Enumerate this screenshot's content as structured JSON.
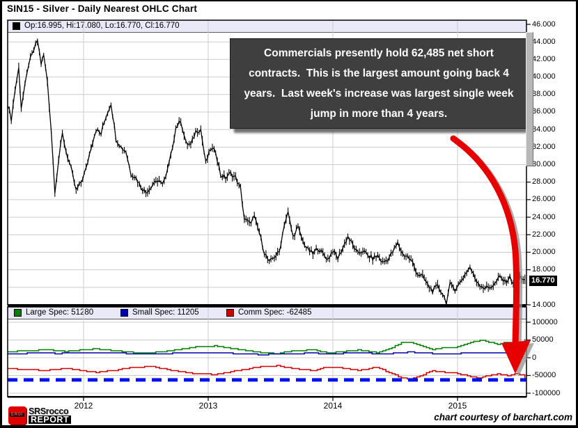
{
  "window": {
    "title": "SIN15 - Silver - Daily Nearest OHLC Chart"
  },
  "colors": {
    "grid": "#cccccc",
    "frame": "#000000",
    "strip_bg": "#e9e9f8",
    "price_series": "#000000",
    "large_spec": "#008000",
    "small_spec": "#0000aa",
    "comm_spec": "#d40000",
    "reference_dash": "#0010f0",
    "arrow": "#e60000",
    "arrow_shadow": "#909090",
    "last_price_bg": "#000000"
  },
  "main_panel": {
    "ohlc_legend": {
      "label": "Op:16.995, Hi:17.080, Lo:16.770, Cl:16.770",
      "swatch_color": "#000000"
    },
    "last_price": {
      "label": "16.770",
      "value": 16.77
    },
    "y_ticks": [
      {
        "label": "46.000",
        "value": 46
      },
      {
        "label": "44.000",
        "value": 44
      },
      {
        "label": "42.000",
        "value": 42
      },
      {
        "label": "40.000",
        "value": 40
      },
      {
        "label": "38.000",
        "value": 38
      },
      {
        "label": "36.000",
        "value": 36
      },
      {
        "label": "34.000",
        "value": 34
      },
      {
        "label": "32.000",
        "value": 32
      },
      {
        "label": "30.000",
        "value": 30
      },
      {
        "label": "28.000",
        "value": 28
      },
      {
        "label": "26.000",
        "value": 26
      },
      {
        "label": "24.000",
        "value": 24
      },
      {
        "label": "22.000",
        "value": 22
      },
      {
        "label": "20.000",
        "value": 20
      },
      {
        "label": "18.000",
        "value": 18
      },
      {
        "label": "14.000",
        "value": 14
      }
    ]
  },
  "annotation": {
    "text": "Commercials presently hold 62,485 net short contracts.  This is the largest amount going back 4 years.  Last week's increase was largest single week jump in more than 4 years."
  },
  "indicator_panel": {
    "legend": [
      {
        "label": "Large Spec: 51280",
        "color": "#008000"
      },
      {
        "label": "Small Spec: 11205",
        "color": "#0000aa"
      },
      {
        "label": "Comm Spec: -62485",
        "color": "#cc0000"
      }
    ],
    "y_ticks": [
      {
        "label": "100000",
        "value": 100000
      },
      {
        "label": "50000",
        "value": 50000
      },
      {
        "label": "0",
        "value": 0
      },
      {
        "label": "-50000",
        "value": -50000
      },
      {
        "label": "-100000",
        "value": -100000
      }
    ]
  },
  "x_axis": {
    "ticks": [
      {
        "label": "2012",
        "value": 2012
      },
      {
        "label": "2013",
        "value": 2013
      },
      {
        "label": "2014",
        "value": 2014
      },
      {
        "label": "2015",
        "value": 2015
      }
    ]
  },
  "footer": {
    "logo": {
      "icon_text": "EROI",
      "line1": "SRSrocco",
      "line2": "REPORT"
    },
    "courtesy": "chart courtesy of barchart.com"
  },
  "chart_data": [
    {
      "type": "line",
      "subtype": "ohlc-daily-rendered-as-line",
      "title": "SIN15 - Silver - Daily Nearest OHLC Chart",
      "x_unit": "year-decimal",
      "ylim": [
        14,
        46
      ],
      "y_tick_step": 2,
      "x_ticks": [
        2012,
        2013,
        2014,
        2015
      ],
      "grid": true,
      "last_bar": {
        "op": 16.995,
        "hi": 17.08,
        "lo": 16.77,
        "cl": 16.77
      },
      "points": [
        [
          2011.39,
          37.0
        ],
        [
          2011.42,
          35.2
        ],
        [
          2011.45,
          38.5
        ],
        [
          2011.48,
          41.0
        ],
        [
          2011.5,
          36.5
        ],
        [
          2011.53,
          39.0
        ],
        [
          2011.56,
          41.5
        ],
        [
          2011.6,
          43.0
        ],
        [
          2011.63,
          44.2
        ],
        [
          2011.66,
          41.5
        ],
        [
          2011.68,
          42.5
        ],
        [
          2011.71,
          39.5
        ],
        [
          2011.74,
          34.0
        ],
        [
          2011.77,
          27.0
        ],
        [
          2011.8,
          30.5
        ],
        [
          2011.83,
          33.5
        ],
        [
          2011.86,
          31.5
        ],
        [
          2011.9,
          29.5
        ],
        [
          2011.94,
          27.0
        ],
        [
          2011.98,
          28.0
        ],
        [
          2012.02,
          29.5
        ],
        [
          2012.06,
          32.0
        ],
        [
          2012.1,
          34.0
        ],
        [
          2012.14,
          33.5
        ],
        [
          2012.18,
          35.5
        ],
        [
          2012.22,
          37.0
        ],
        [
          2012.26,
          33.0
        ],
        [
          2012.3,
          32.0
        ],
        [
          2012.34,
          31.5
        ],
        [
          2012.38,
          29.0
        ],
        [
          2012.42,
          28.5
        ],
        [
          2012.46,
          27.5
        ],
        [
          2012.5,
          26.8
        ],
        [
          2012.54,
          27.5
        ],
        [
          2012.58,
          28.2
        ],
        [
          2012.62,
          27.8
        ],
        [
          2012.66,
          28.5
        ],
        [
          2012.7,
          31.0
        ],
        [
          2012.74,
          34.2
        ],
        [
          2012.78,
          35.0
        ],
        [
          2012.82,
          32.5
        ],
        [
          2012.86,
          32.2
        ],
        [
          2012.9,
          33.8
        ],
        [
          2012.94,
          34.0
        ],
        [
          2012.98,
          30.2
        ],
        [
          2013.02,
          31.8
        ],
        [
          2013.06,
          31.5
        ],
        [
          2013.1,
          28.8
        ],
        [
          2013.14,
          28.5
        ],
        [
          2013.18,
          29.0
        ],
        [
          2013.22,
          28.5
        ],
        [
          2013.26,
          27.2
        ],
        [
          2013.29,
          23.8
        ],
        [
          2013.33,
          23.3
        ],
        [
          2013.37,
          24.0
        ],
        [
          2013.41,
          22.2
        ],
        [
          2013.45,
          20.0
        ],
        [
          2013.49,
          18.8
        ],
        [
          2013.53,
          19.5
        ],
        [
          2013.57,
          20.0
        ],
        [
          2013.61,
          23.2
        ],
        [
          2013.64,
          24.5
        ],
        [
          2013.68,
          21.8
        ],
        [
          2013.72,
          22.8
        ],
        [
          2013.76,
          21.2
        ],
        [
          2013.8,
          20.3
        ],
        [
          2013.84,
          19.8
        ],
        [
          2013.88,
          20.5
        ],
        [
          2013.92,
          19.8
        ],
        [
          2013.96,
          19.2
        ],
        [
          2014.0,
          20.2
        ],
        [
          2014.04,
          19.3
        ],
        [
          2014.08,
          20.5
        ],
        [
          2014.12,
          21.8
        ],
        [
          2014.16,
          20.8
        ],
        [
          2014.2,
          19.8
        ],
        [
          2014.24,
          20.2
        ],
        [
          2014.28,
          19.6
        ],
        [
          2014.32,
          19.3
        ],
        [
          2014.36,
          19.6
        ],
        [
          2014.4,
          18.8
        ],
        [
          2014.44,
          19.2
        ],
        [
          2014.48,
          20.0
        ],
        [
          2014.52,
          21.0
        ],
        [
          2014.56,
          19.8
        ],
        [
          2014.6,
          19.5
        ],
        [
          2014.64,
          18.8
        ],
        [
          2014.68,
          17.5
        ],
        [
          2014.72,
          17.2
        ],
        [
          2014.76,
          16.3
        ],
        [
          2014.8,
          15.6
        ],
        [
          2014.84,
          16.1
        ],
        [
          2014.88,
          15.3
        ],
        [
          2014.91,
          14.3
        ],
        [
          2014.94,
          16.3
        ],
        [
          2014.98,
          15.8
        ],
        [
          2015.02,
          16.5
        ],
        [
          2015.06,
          17.5
        ],
        [
          2015.1,
          18.3
        ],
        [
          2015.14,
          17.0
        ],
        [
          2015.18,
          16.3
        ],
        [
          2015.22,
          15.9
        ],
        [
          2015.26,
          16.0
        ],
        [
          2015.3,
          16.4
        ],
        [
          2015.34,
          17.2
        ],
        [
          2015.38,
          16.6
        ],
        [
          2015.42,
          17.1
        ],
        [
          2015.46,
          16.2
        ],
        [
          2015.5,
          17.3
        ],
        [
          2015.54,
          16.77
        ]
      ]
    },
    {
      "type": "line",
      "subtype": "commitment-of-traders",
      "x_unit": "year-decimal",
      "ylim": [
        -100000,
        100000
      ],
      "y_ticks": [
        100000,
        50000,
        0,
        -50000,
        -100000
      ],
      "grid": true,
      "reference_line": {
        "value": -62485,
        "style": "dashed",
        "color": "#0010f0"
      },
      "series": [
        {
          "name": "Large Spec",
          "last": 51280,
          "color": "#008000",
          "points": [
            [
              2011.39,
              17000
            ],
            [
              2011.55,
              20000
            ],
            [
              2011.7,
              22000
            ],
            [
              2011.85,
              18000
            ],
            [
              2012.0,
              22000
            ],
            [
              2012.1,
              25000
            ],
            [
              2012.25,
              20000
            ],
            [
              2012.4,
              15000
            ],
            [
              2012.55,
              14000
            ],
            [
              2012.7,
              20000
            ],
            [
              2012.85,
              28000
            ],
            [
              2012.95,
              32000
            ],
            [
              2013.05,
              33000
            ],
            [
              2013.15,
              28000
            ],
            [
              2013.3,
              20000
            ],
            [
              2013.45,
              13000
            ],
            [
              2013.55,
              12000
            ],
            [
              2013.7,
              20000
            ],
            [
              2013.85,
              22000
            ],
            [
              2013.95,
              14000
            ],
            [
              2014.05,
              16000
            ],
            [
              2014.2,
              22000
            ],
            [
              2014.35,
              14000
            ],
            [
              2014.45,
              25000
            ],
            [
              2014.55,
              42000
            ],
            [
              2014.62,
              44000
            ],
            [
              2014.7,
              35000
            ],
            [
              2014.8,
              24000
            ],
            [
              2014.9,
              28000
            ],
            [
              2015.0,
              30000
            ],
            [
              2015.08,
              40000
            ],
            [
              2015.18,
              50000
            ],
            [
              2015.25,
              44000
            ],
            [
              2015.32,
              38000
            ],
            [
              2015.4,
              44000
            ],
            [
              2015.46,
              36000
            ],
            [
              2015.5,
              38000
            ],
            [
              2015.54,
              51280
            ]
          ]
        },
        {
          "name": "Small Spec",
          "last": 11205,
          "color": "#0000aa",
          "points": [
            [
              2011.39,
              11000
            ],
            [
              2011.6,
              13000
            ],
            [
              2011.8,
              12000
            ],
            [
              2012.0,
              14000
            ],
            [
              2012.2,
              15000
            ],
            [
              2012.4,
              11000
            ],
            [
              2012.6,
              10000
            ],
            [
              2012.8,
              14000
            ],
            [
              2013.0,
              15000
            ],
            [
              2013.2,
              12000
            ],
            [
              2013.4,
              9000
            ],
            [
              2013.6,
              10000
            ],
            [
              2013.8,
              13000
            ],
            [
              2014.0,
              11000
            ],
            [
              2014.2,
              14000
            ],
            [
              2014.4,
              10000
            ],
            [
              2014.6,
              16000
            ],
            [
              2014.8,
              12000
            ],
            [
              2015.0,
              12000
            ],
            [
              2015.2,
              14000
            ],
            [
              2015.4,
              12000
            ],
            [
              2015.54,
              11205
            ]
          ]
        },
        {
          "name": "Comm Spec",
          "last": -62485,
          "color": "#d40000",
          "points": [
            [
              2011.39,
              -30000
            ],
            [
              2011.55,
              -34000
            ],
            [
              2011.7,
              -36000
            ],
            [
              2011.85,
              -30000
            ],
            [
              2012.0,
              -37000
            ],
            [
              2012.1,
              -41000
            ],
            [
              2012.25,
              -35000
            ],
            [
              2012.4,
              -27000
            ],
            [
              2012.55,
              -25000
            ],
            [
              2012.7,
              -35000
            ],
            [
              2012.85,
              -43000
            ],
            [
              2012.95,
              -46000
            ],
            [
              2013.05,
              -47000
            ],
            [
              2013.15,
              -41000
            ],
            [
              2013.3,
              -32000
            ],
            [
              2013.45,
              -24000
            ],
            [
              2013.55,
              -23000
            ],
            [
              2013.7,
              -31000
            ],
            [
              2013.85,
              -36000
            ],
            [
              2013.95,
              -26000
            ],
            [
              2014.05,
              -28000
            ],
            [
              2014.2,
              -36000
            ],
            [
              2014.35,
              -26000
            ],
            [
              2014.45,
              -42000
            ],
            [
              2014.55,
              -57000
            ],
            [
              2014.62,
              -59000
            ],
            [
              2014.7,
              -50000
            ],
            [
              2014.8,
              -37000
            ],
            [
              2014.9,
              -41000
            ],
            [
              2015.0,
              -44000
            ],
            [
              2015.08,
              -52000
            ],
            [
              2015.18,
              -57000
            ],
            [
              2015.25,
              -50000
            ],
            [
              2015.32,
              -46000
            ],
            [
              2015.4,
              -50000
            ],
            [
              2015.46,
              -46000
            ],
            [
              2015.5,
              -48000
            ],
            [
              2015.54,
              -62485
            ]
          ]
        }
      ]
    }
  ]
}
